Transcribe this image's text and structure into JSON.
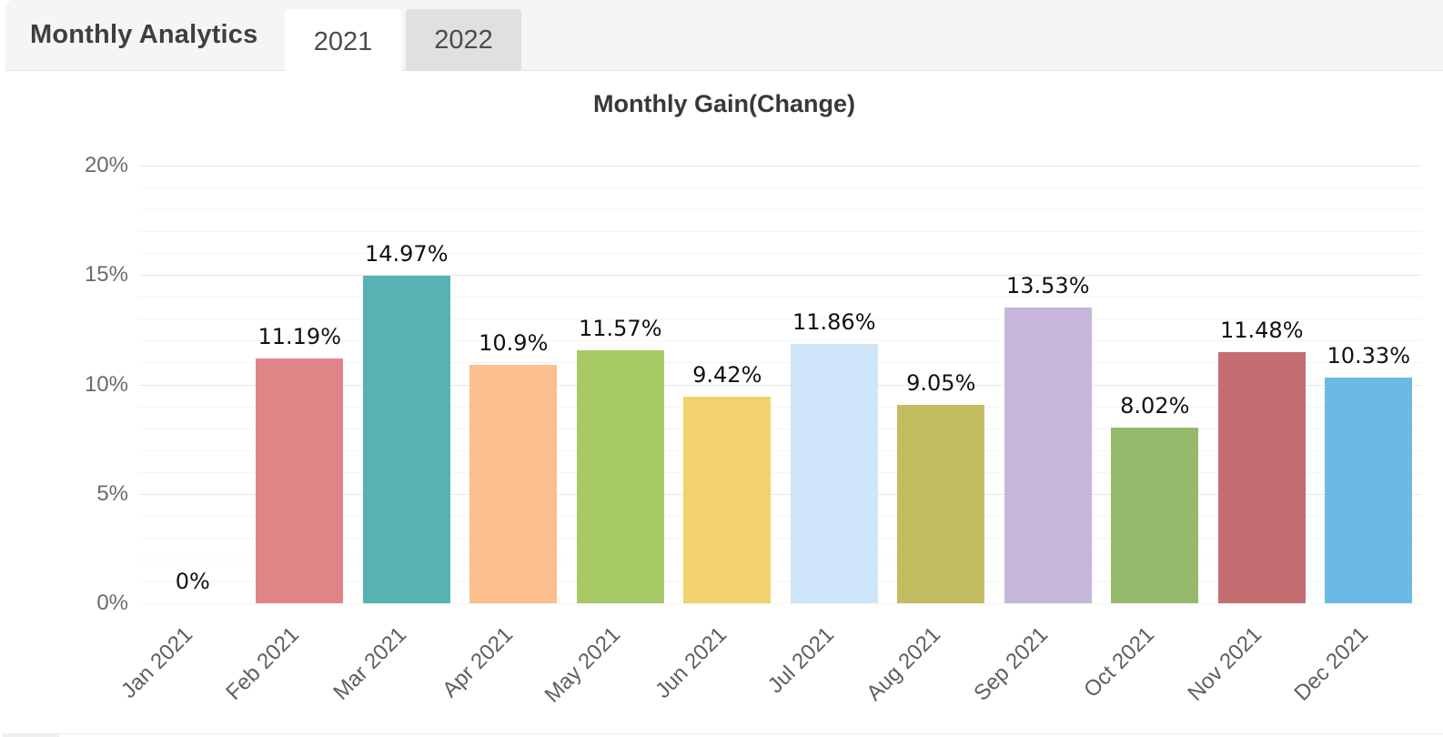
{
  "header": {
    "title": "Monthly Analytics",
    "tabs": [
      {
        "label": "2021",
        "active": true
      },
      {
        "label": "2022",
        "active": false
      }
    ]
  },
  "chart_data": {
    "type": "bar",
    "title": "Monthly Gain(Change)",
    "categories": [
      "Jan 2021",
      "Feb 2021",
      "Mar 2021",
      "Apr 2021",
      "May 2021",
      "Jun 2021",
      "Jul 2021",
      "Aug 2021",
      "Sep 2021",
      "Oct 2021",
      "Nov 2021",
      "Dec 2021"
    ],
    "values": [
      0,
      11.19,
      14.97,
      10.9,
      11.57,
      9.42,
      11.86,
      9.05,
      13.53,
      8.02,
      11.48,
      10.33
    ],
    "data_labels": [
      "0%",
      "11.19%",
      "14.97%",
      "10.9%",
      "11.57%",
      "9.42%",
      "11.86%",
      "9.05%",
      "13.53%",
      "8.02%",
      "11.48%",
      "10.33%"
    ],
    "bar_colors": [
      null,
      "#e08487",
      "#57b3b3",
      "#fbbf8e",
      "#a7c966",
      "#f3d16e",
      "#cfe5f9",
      "#c3bd62",
      "#c7b6dc",
      "#94b96b",
      "#c56e72",
      "#6bbae3"
    ],
    "xlabel": "",
    "ylabel": "",
    "ylim": [
      0,
      20
    ],
    "ytick_step": 5,
    "minor_grid_step": 1,
    "ytick_labels": [
      "0%",
      "5%",
      "10%",
      "15%",
      "20%"
    ],
    "grid": "horizontal minor+major",
    "legend_position": "none",
    "x_label_rotation_deg": -45
  }
}
